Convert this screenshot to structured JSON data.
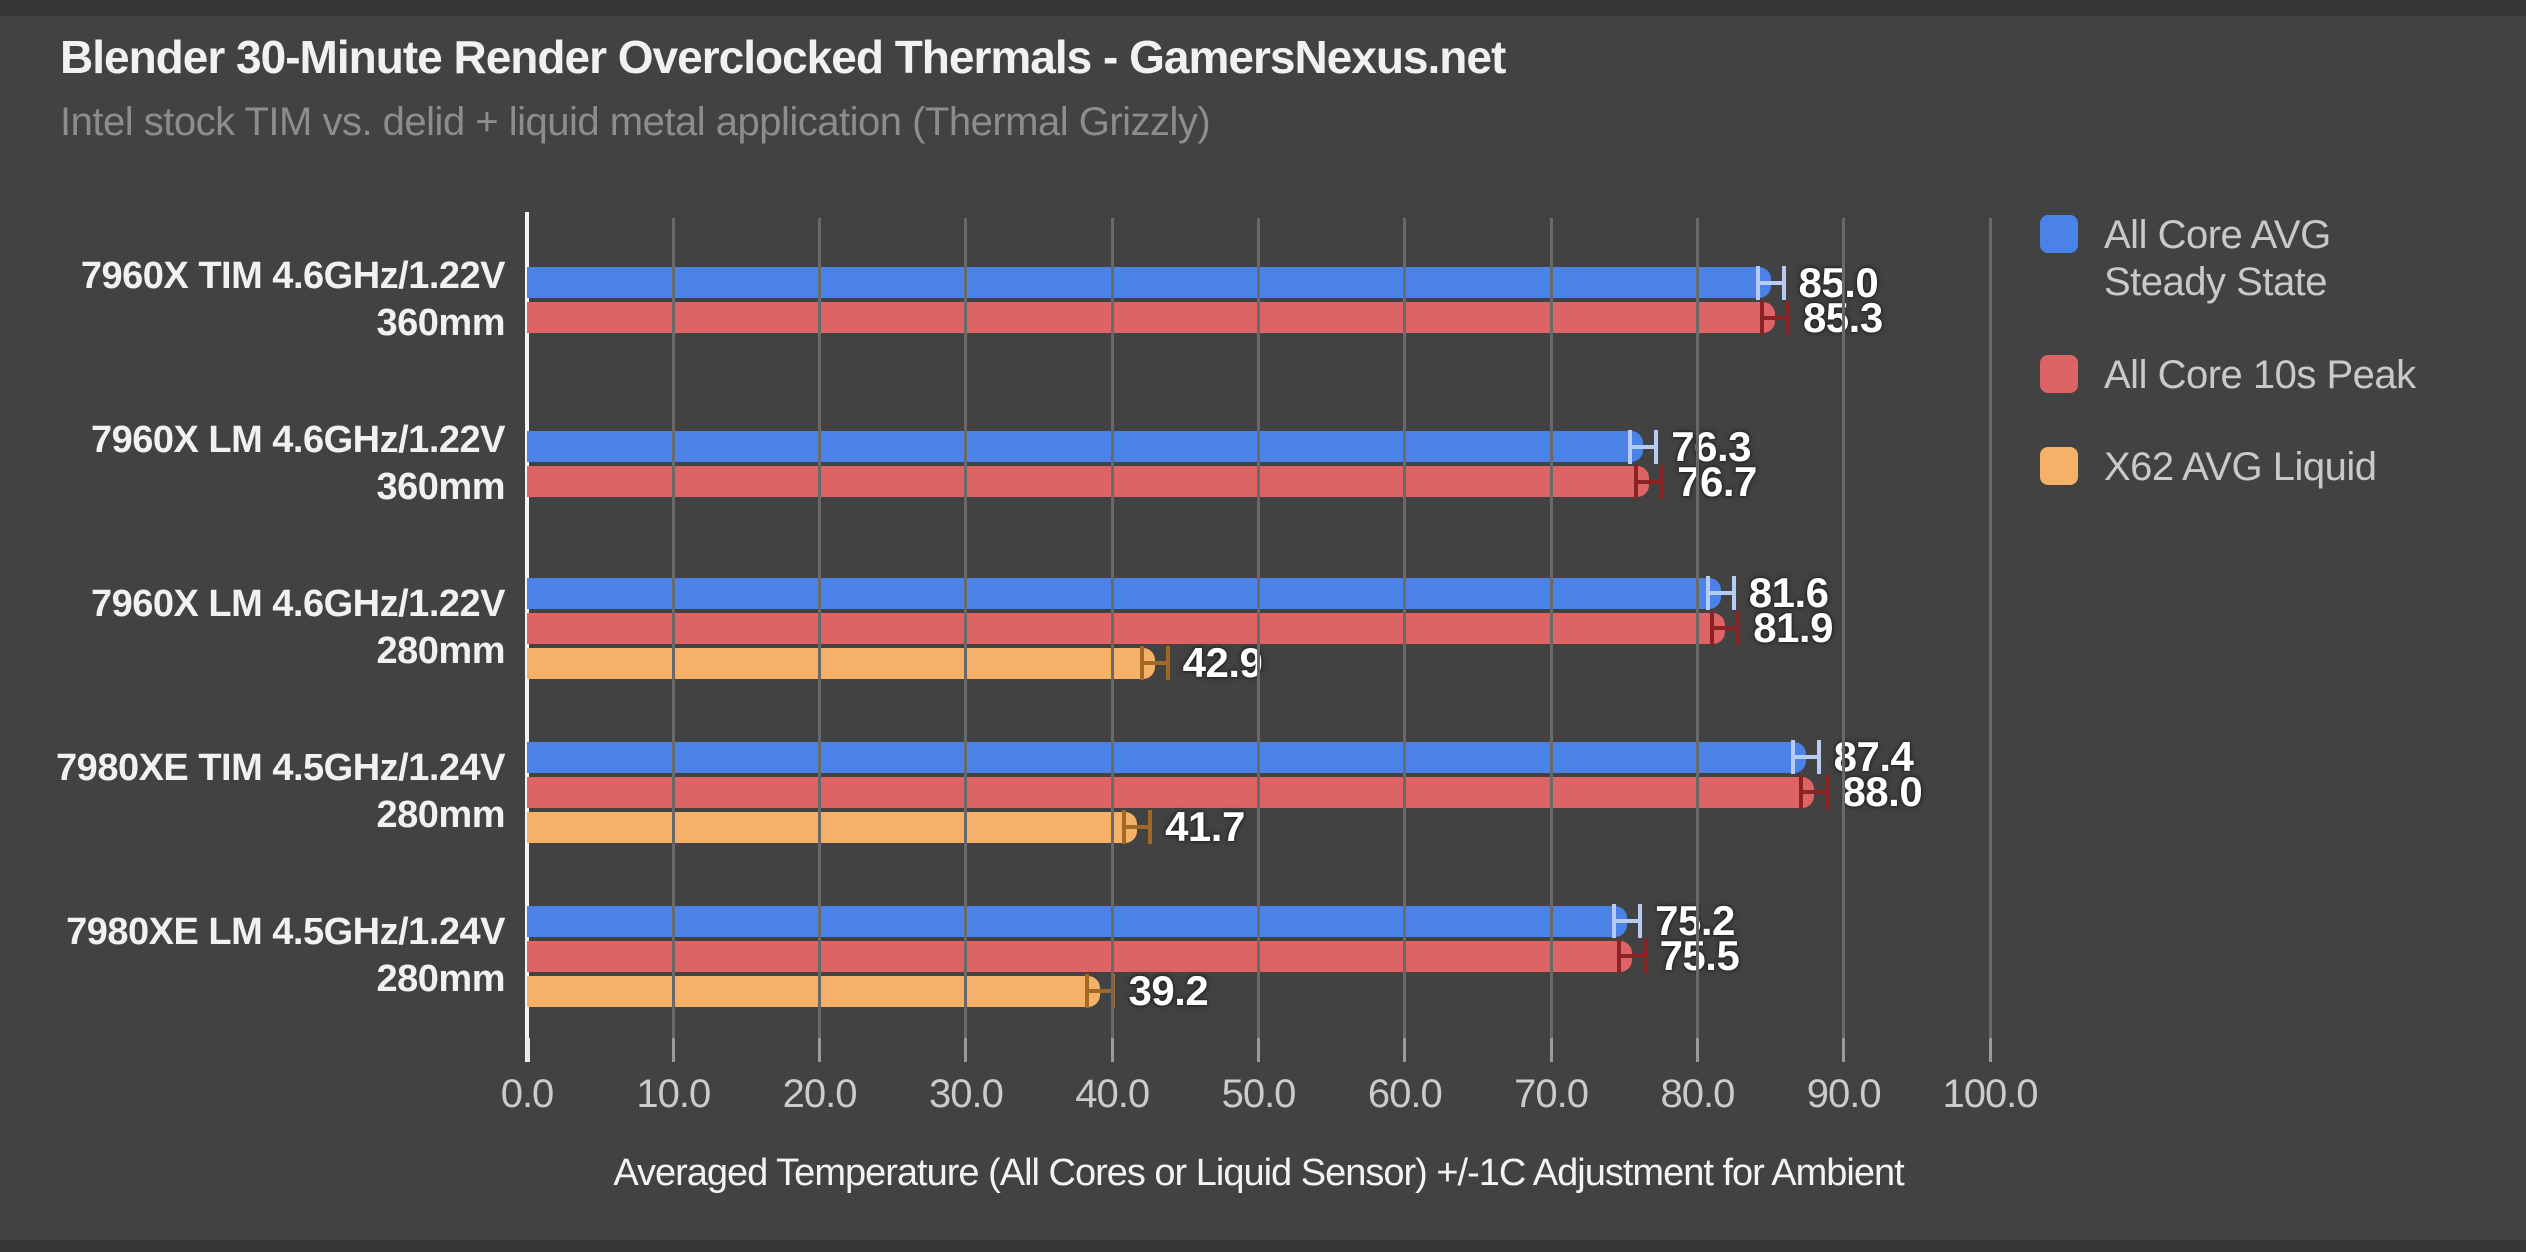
{
  "page": {
    "background": "#424242"
  },
  "header": {
    "title": "Blender 30-Minute Render Overclocked Thermals - GamersNexus.net",
    "subtitle": "Intel stock TIM vs. delid + liquid metal application (Thermal Grizzly)"
  },
  "chart_data": {
    "type": "bar",
    "orientation": "horizontal",
    "title": "Blender 30-Minute Render Overclocked Thermals - GamersNexus.net",
    "subtitle": "Intel stock TIM vs. delid + liquid metal application (Thermal Grizzly)",
    "xlabel": "Averaged Temperature (All Cores or Liquid Sensor) +/-1C Adjustment for Ambient",
    "xlim": [
      0,
      100
    ],
    "xticks": [
      0,
      10,
      20,
      30,
      40,
      50,
      60,
      70,
      80,
      90,
      100
    ],
    "grid": true,
    "legend_position": "top-right",
    "error_bars": true,
    "error_bars_plus_minus": 1.0,
    "categories": [
      [
        "7960X TIM 4.6GHz/1.22V",
        "360mm"
      ],
      [
        "7960X LM 4.6GHz/1.22V",
        "360mm"
      ],
      [
        "7960X LM 4.6GHz/1.22V",
        "280mm"
      ],
      [
        "7980XE TIM 4.5GHz/1.24V",
        "280mm"
      ],
      [
        "7980XE LM 4.5GHz/1.24V",
        "280mm"
      ]
    ],
    "series": [
      {
        "name": "All Core AVG Steady State",
        "label_lines": [
          "All Core AVG",
          "Steady State"
        ],
        "color": "#4a82e8",
        "error_color": "#b7ccf4",
        "values": [
          85.0,
          76.3,
          81.6,
          87.4,
          75.2
        ]
      },
      {
        "name": "All Core 10s Peak",
        "label_lines": [
          "All Core 10s Peak"
        ],
        "color": "#dd6364",
        "error_color": "#8a2424",
        "values": [
          85.3,
          76.7,
          81.9,
          88.0,
          75.5
        ]
      },
      {
        "name": "X62 AVG Liquid",
        "label_lines": [
          "X62 AVG Liquid"
        ],
        "color": "#f5b168",
        "error_color": "#a06a26",
        "values": [
          null,
          null,
          42.9,
          41.7,
          39.2
        ]
      }
    ]
  }
}
